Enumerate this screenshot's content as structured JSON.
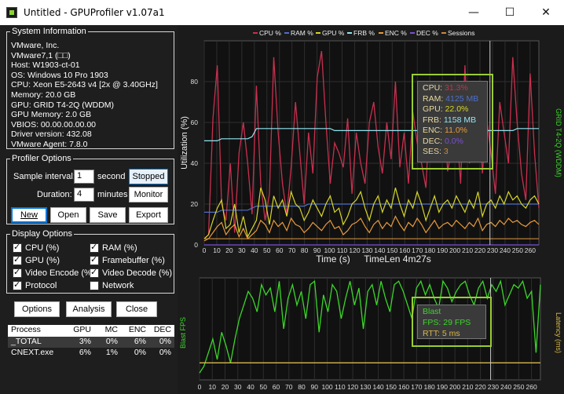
{
  "window": {
    "title": "Untitled - GPUProfiler v1.07a1",
    "minimize": "—",
    "maximize": "☐",
    "close": "✕"
  },
  "system_info": {
    "legend": "System Information",
    "lines": [
      "VMware, Inc.",
      "VMware7,1 (□□)",
      "Host: W1903-ct-01",
      "OS: Windows 10 Pro 1903",
      "CPU: Xeon E5-2643 v4 [2x @ 3.40GHz]",
      "Memory: 20.0 GB",
      "GPU: GRID T4-2Q (WDDM)",
      "GPU Memory: 2.0 GB",
      "VBIOS: 00.00.00.00.00",
      "Driver version: 432.08",
      "VMware Agent: 7.8.0"
    ]
  },
  "profiler_options": {
    "legend": "Profiler Options",
    "sample_interval_label": "Sample interval:",
    "sample_interval_value": "1",
    "sample_interval_unit": "second",
    "duration_label": "Duration:",
    "duration_value": "4",
    "duration_unit": "minutes",
    "stopped_label": "Stopped",
    "monitor_label": "Monitor",
    "new_label": "New",
    "open_label": "Open",
    "save_label": "Save",
    "export_label": "Export"
  },
  "display_options": {
    "legend": "Display Options",
    "items": [
      {
        "label": "CPU (%)",
        "checked": true
      },
      {
        "label": "RAM (%)",
        "checked": true
      },
      {
        "label": "GPU (%)",
        "checked": true
      },
      {
        "label": "Framebuffer (%)",
        "checked": true
      },
      {
        "label": "Video Encode (%",
        "checked": true
      },
      {
        "label": "Video Decode (%)",
        "checked": true
      },
      {
        "label": "Protocol",
        "checked": true
      },
      {
        "label": "Network",
        "checked": false
      }
    ]
  },
  "bottom_buttons": {
    "options": "Options",
    "analysis": "Analysis",
    "close": "Close"
  },
  "process_table": {
    "headers": [
      "Process",
      "GPU",
      "MC",
      "ENC",
      "DEC"
    ],
    "rows": [
      [
        "_TOTAL",
        "3%",
        "0%",
        "6%",
        "0%"
      ],
      [
        "CNEXT.exe",
        "6%",
        "1%",
        "0%",
        "0%"
      ]
    ]
  },
  "colors": {
    "cpu": "#c8304f",
    "ram": "#4f6fc8",
    "gpu": "#d6d62a",
    "frb": "#8fe6f0",
    "enc": "#e89a3a",
    "dec": "#7a4fd0",
    "sessions": "#c88a3a",
    "fps": "#3cd62a",
    "rtt": "#d8b84a",
    "highlight": "#9acd32"
  },
  "chart_data": [
    {
      "type": "line",
      "legend": [
        "CPU %",
        "RAM %",
        "GPU %",
        "FRB %",
        "ENC %",
        "DEC %",
        "Sessions"
      ],
      "xlabel": "Time (s)",
      "time_len": "TimeLen 4m27s",
      "ylabel": "Utilization (%)",
      "ylabel_right": "GRID T4-2Q (WDDM)",
      "xlim": [
        0,
        267
      ],
      "ylim": [
        0,
        100
      ],
      "x_ticks": [
        0,
        10,
        20,
        30,
        40,
        50,
        60,
        70,
        80,
        90,
        100,
        110,
        120,
        130,
        140,
        150,
        160,
        170,
        180,
        190,
        200,
        210,
        220,
        230,
        240,
        250,
        260
      ],
      "y_ticks": [
        0,
        20,
        40,
        60,
        80
      ],
      "series": [
        {
          "name": "CPU %",
          "values": [
            3,
            5,
            62,
            88,
            20,
            12,
            40,
            6,
            45,
            60,
            40,
            15,
            78,
            30,
            12,
            25,
            92,
            55,
            30,
            15,
            38,
            70,
            45,
            20,
            55,
            35,
            82,
            95,
            60,
            30,
            50,
            45,
            38,
            62,
            25,
            55,
            40,
            30,
            60,
            70,
            48,
            35,
            60,
            42,
            80,
            38,
            55,
            30,
            65,
            50,
            40,
            28,
            70,
            42,
            55,
            80,
            36,
            48,
            60,
            30,
            88,
            40,
            52,
            78,
            35,
            62,
            45,
            25,
            70,
            55,
            40,
            92,
            60,
            35,
            22,
            84,
            45,
            18
          ]
        },
        {
          "name": "RAM %",
          "values": [
            16,
            16,
            16,
            16,
            17,
            17,
            17,
            17,
            17,
            17,
            17,
            18,
            19,
            19,
            19,
            19,
            19,
            19,
            19,
            19,
            19,
            19,
            19,
            19,
            20,
            20,
            20,
            20,
            20,
            20,
            20,
            20,
            20,
            20,
            20,
            20,
            20,
            20,
            20,
            20,
            20,
            20,
            20,
            20,
            20,
            20,
            20,
            20,
            20,
            20,
            20,
            20,
            20,
            20,
            20,
            20,
            20,
            20,
            20,
            20,
            20,
            20,
            20,
            20,
            20,
            20,
            20,
            20,
            20,
            20,
            20,
            20,
            20,
            20,
            20,
            20,
            20,
            20
          ]
        },
        {
          "name": "GPU %",
          "values": [
            3,
            5,
            12,
            18,
            22,
            8,
            10,
            20,
            6,
            14,
            4,
            8,
            12,
            28,
            22,
            10,
            24,
            18,
            22,
            14,
            26,
            20,
            18,
            12,
            16,
            22,
            18,
            14,
            20,
            24,
            16,
            18,
            10,
            14,
            20,
            22,
            26,
            18,
            12,
            20,
            24,
            16,
            22,
            18,
            28,
            20,
            14,
            22,
            18,
            26,
            20,
            12,
            18,
            24,
            16,
            20,
            22,
            18,
            24,
            20,
            16,
            22,
            18,
            26,
            14,
            20,
            22,
            18,
            24,
            20,
            26,
            22,
            24,
            20,
            18,
            22,
            24,
            20
          ]
        },
        {
          "name": "FRB %",
          "values": [
            51,
            51,
            51,
            51,
            52,
            52,
            52,
            52,
            52,
            52,
            52,
            53,
            57,
            57,
            57,
            57,
            57,
            57,
            57,
            57,
            57,
            57,
            57,
            57,
            57,
            57,
            57,
            57,
            57,
            57,
            56,
            56,
            56,
            56,
            56,
            56,
            56,
            56,
            56,
            56,
            56,
            56,
            56,
            56,
            56,
            56,
            56,
            56,
            56,
            56,
            56,
            56,
            56,
            56,
            56,
            56,
            56,
            56,
            56,
            56,
            56,
            56,
            56,
            56,
            56,
            56,
            56,
            56,
            56,
            56,
            56,
            56,
            57,
            57,
            57,
            57,
            57,
            57
          ]
        },
        {
          "name": "ENC %",
          "values": [
            2,
            3,
            6,
            9,
            11,
            5,
            8,
            10,
            4,
            8,
            3,
            5,
            7,
            12,
            10,
            6,
            12,
            9,
            11,
            7,
            13,
            10,
            9,
            6,
            8,
            11,
            9,
            7,
            10,
            12,
            8,
            9,
            5,
            7,
            10,
            11,
            13,
            9,
            6,
            10,
            12,
            8,
            11,
            9,
            14,
            10,
            7,
            11,
            9,
            13,
            10,
            6,
            9,
            12,
            8,
            10,
            11,
            9,
            12,
            10,
            8,
            11,
            9,
            13,
            7,
            10,
            11,
            9,
            12,
            10,
            13,
            11,
            12,
            10,
            9,
            11,
            12,
            10
          ]
        },
        {
          "name": "DEC %",
          "values": [
            0,
            0,
            0,
            0,
            0,
            0,
            0,
            0,
            0,
            0,
            0,
            0,
            0,
            0,
            0,
            0,
            0,
            0,
            0,
            0,
            0,
            0,
            0,
            0,
            0,
            0,
            0,
            0,
            0,
            0,
            0,
            0,
            0,
            0,
            0,
            0,
            0,
            0,
            0,
            0,
            0,
            0,
            0,
            0,
            0,
            0,
            0,
            0,
            0,
            0,
            0,
            0,
            0,
            0,
            0,
            0,
            0,
            0,
            0,
            0,
            0,
            0,
            0,
            0,
            0,
            0,
            0,
            0,
            0,
            0,
            0,
            0,
            0,
            0,
            0,
            0,
            0,
            0
          ]
        },
        {
          "name": "Sessions",
          "values": [
            3,
            3,
            3,
            3,
            3,
            3,
            3,
            3,
            3,
            3,
            3,
            3,
            3,
            3,
            3,
            3,
            3,
            3,
            3,
            3,
            3,
            3,
            3,
            3,
            3,
            3,
            3,
            3,
            3,
            3,
            3,
            3,
            3,
            3,
            3,
            3,
            3,
            3,
            3,
            3,
            3,
            3,
            3,
            3,
            3,
            3,
            3,
            3,
            3,
            3,
            3,
            3,
            3,
            3,
            3,
            3,
            3,
            3,
            3,
            3,
            3,
            3,
            3,
            3,
            3,
            3,
            3,
            3,
            3,
            3,
            3,
            3,
            3,
            3,
            3,
            3,
            3,
            3
          ]
        }
      ],
      "cursor_x": 228,
      "tooltip": [
        {
          "label": "CPU: ",
          "value": "31.3%",
          "key": "cpu"
        },
        {
          "label": "RAM: ",
          "value": "4125 MB",
          "key": "ram"
        },
        {
          "label": "GPU: ",
          "value": "22.0%",
          "key": "gpu"
        },
        {
          "label": "FRB: ",
          "value": "1158 MB",
          "key": "frb"
        },
        {
          "label": "ENC: ",
          "value": "11.0%",
          "key": "enc"
        },
        {
          "label": "DEC: ",
          "value": "0.0%",
          "key": "dec"
        },
        {
          "label": "SES: ",
          "value": "3",
          "key": "sessions"
        }
      ]
    },
    {
      "type": "line",
      "ylabel": "Blast FPS",
      "ylabel_right": "Latency (ms)",
      "xlim": [
        0,
        267
      ],
      "ylim": [
        0,
        30
      ],
      "x_ticks": [
        0,
        10,
        20,
        30,
        40,
        50,
        60,
        70,
        80,
        90,
        100,
        110,
        120,
        130,
        140,
        150,
        160,
        170,
        180,
        190,
        200,
        210,
        220,
        230,
        240,
        250,
        260
      ],
      "series": [
        {
          "name": "FPS",
          "values": [
            2,
            4,
            8,
            12,
            6,
            14,
            10,
            5,
            12,
            18,
            22,
            26,
            24,
            20,
            28,
            25,
            27,
            20,
            29,
            15,
            24,
            28,
            22,
            26,
            18,
            28,
            29,
            14,
            25,
            20,
            28,
            26,
            18,
            24,
            29,
            22,
            27,
            15,
            26,
            28,
            22,
            29,
            24,
            20,
            28,
            29,
            26,
            22,
            18,
            27,
            29,
            25,
            28,
            24,
            21,
            29,
            27,
            23,
            26,
            28,
            29,
            25,
            22,
            27,
            29,
            24,
            28,
            26,
            29,
            22,
            25,
            28,
            27,
            29,
            24,
            26,
            8,
            28
          ]
        },
        {
          "name": "RTT",
          "values": [
            5,
            5,
            5,
            5,
            5,
            5,
            5,
            5,
            5,
            5,
            5,
            5,
            5,
            5,
            5,
            5,
            5,
            5,
            5,
            5,
            5,
            5,
            5,
            5,
            5,
            5,
            5,
            5,
            5,
            5,
            5,
            5,
            5,
            5,
            5,
            5,
            5,
            5,
            5,
            5,
            5,
            5,
            5,
            5,
            5,
            5,
            5,
            5,
            5,
            5,
            5,
            5,
            5,
            5,
            5,
            5,
            5,
            5,
            5,
            5,
            5,
            5,
            5,
            5,
            5,
            5,
            5,
            5,
            5,
            5,
            5,
            5,
            5,
            5,
            5,
            5,
            5,
            5
          ]
        }
      ],
      "cursor_x": 228,
      "tooltip_title": "Blast",
      "tooltip": [
        {
          "label": "FPS: ",
          "value": "29 FPS",
          "key": "fps"
        },
        {
          "label": "RTT: ",
          "value": "5 ms",
          "key": "rtt"
        }
      ]
    }
  ]
}
